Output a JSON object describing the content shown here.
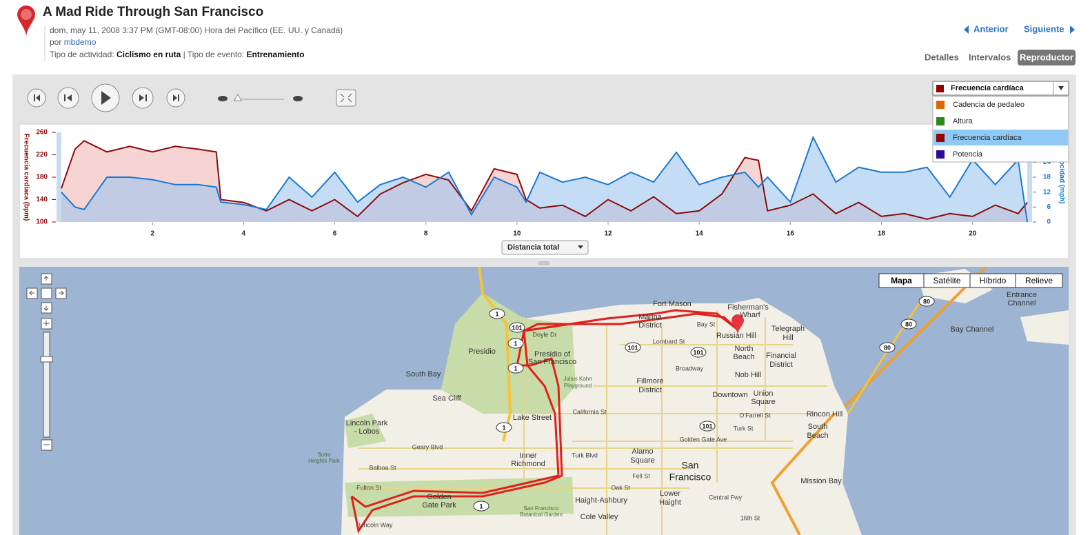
{
  "header": {
    "title": "A Mad Ride Through San Francisco",
    "datetime": "dom, may 11, 2008 3:37 PM (GMT-08:00) Hora del Pacífico (EE. UU. y Canadá)",
    "by_prefix": "por",
    "author": "mbdemo",
    "activity_label": "Tipo de actividad:",
    "activity": "Ciclismo en ruta",
    "separator": "|",
    "event_label": "Tipo de evento:",
    "event": "Entrenamiento"
  },
  "nav": {
    "previous": "Anterior",
    "next": "Siguiente"
  },
  "tabs": [
    "Detalles",
    "Intervalos",
    "Reproductor"
  ],
  "metric_dropdown": {
    "selected": "Frecuencia cardíaca",
    "options": [
      {
        "label": "Cadencia de pedaleo",
        "color": "#d86c00"
      },
      {
        "label": "Altura",
        "color": "#2a8a1a"
      },
      {
        "label": "Frecuencia cardíaca",
        "color": "#990000"
      },
      {
        "label": "Potencia",
        "color": "#2a0a99"
      }
    ]
  },
  "x_selector": "Distancia total",
  "chart_data": {
    "type": "line",
    "ylabel": "Frecuencia cardíaca (bpm)",
    "y2label": "Velocidad (mph)",
    "x": [
      0,
      0.3,
      0.5,
      1,
      1.5,
      2,
      2.5,
      3,
      3.4,
      3.5,
      4,
      4.5,
      5,
      5.5,
      6,
      6.5,
      7,
      7.5,
      8,
      8.5,
      9,
      9.5,
      10,
      10.2,
      10.5,
      11,
      11.5,
      12,
      12.5,
      13,
      13.5,
      14,
      14.5,
      15,
      15.3,
      15.5,
      16,
      16.5,
      17,
      17.5,
      18,
      18.5,
      19,
      19.5,
      20,
      20.5,
      21,
      21.2
    ],
    "series": [
      {
        "name": "Frecuencia cardíaca",
        "color": "#8b0a0a",
        "fill": "#f2b8b8",
        "axis": "y",
        "values": [
          160,
          230,
          245,
          225,
          235,
          225,
          235,
          230,
          225,
          140,
          135,
          120,
          140,
          120,
          140,
          110,
          150,
          170,
          185,
          175,
          120,
          195,
          185,
          140,
          125,
          130,
          110,
          140,
          120,
          145,
          115,
          120,
          150,
          215,
          210,
          120,
          130,
          150,
          115,
          135,
          110,
          115,
          105,
          115,
          110,
          130,
          115,
          135
        ]
      },
      {
        "name": "Velocidad",
        "color": "#1a78d0",
        "fill": "#9cc6ee",
        "axis": "y2",
        "values": [
          12,
          6,
          5,
          18,
          18,
          17,
          15,
          15,
          14,
          8,
          7,
          5,
          18,
          10,
          20,
          8,
          15,
          18,
          14,
          20,
          3,
          18,
          14,
          8,
          20,
          16,
          18,
          15,
          20,
          16,
          28,
          15,
          18,
          20,
          14,
          18,
          8,
          34,
          16,
          22,
          20,
          20,
          22,
          10,
          25,
          15,
          25,
          0
        ]
      }
    ],
    "xlim": [
      0,
      21.2
    ],
    "xticks": [
      2,
      4,
      6,
      8,
      10,
      12,
      14,
      16,
      18,
      20
    ],
    "ylim": [
      100,
      260
    ],
    "yticks": [
      100,
      140,
      180,
      220,
      260
    ],
    "y2lim": [
      0,
      36
    ],
    "y2ticks": [
      0,
      6,
      12,
      18,
      24
    ]
  },
  "map": {
    "type_buttons": [
      "Mapa",
      "Satélite",
      "Híbrido",
      "Relieve"
    ],
    "labels": [
      "Fort Mason",
      "Fisherman's",
      "Wharf",
      "Marina",
      "District",
      "Telegraph",
      "Hill",
      "Russian Hill",
      "North",
      "Beach",
      "Financial",
      "District",
      "Nob Hill",
      "Presidio",
      "Presidio of",
      "San Francisco",
      "South Bay",
      "Fillmore",
      "District",
      "Downtown",
      "Union",
      "Square",
      "Sea Cliff",
      "Lake Street",
      "Rincon Hill",
      "South",
      "Beach",
      "Lincoln Park",
      "- Lobos",
      "Inner",
      "Richmond",
      "Alamo",
      "Square",
      "San",
      "Francisco",
      "Golden",
      "Gate Park",
      "Haight-Ashbury",
      "Lower",
      "Haight",
      "Mission Bay",
      "Cole Valley",
      "Bay Channel",
      "Entrance",
      "Channel",
      "Geary Blvd",
      "Balboa St",
      "Fulton St",
      "Lincoln Way",
      "California St",
      "Bay St",
      "Lombard St",
      "Turk Blvd",
      "Fell St",
      "Oak St",
      "Doyle Dr",
      "Broadway",
      "Golden Gate Ave",
      "Central Fwy",
      "16th St",
      "Turk St",
      "O'Farrell St",
      "Sutro",
      "Heights Park",
      "Julius Kahn",
      "Playground",
      "San Francisco",
      "Botanical Garden"
    ],
    "shields": [
      "1",
      "101",
      "1",
      "1",
      "101",
      "101",
      "1",
      "1",
      "101",
      "80",
      "80",
      "80"
    ]
  }
}
